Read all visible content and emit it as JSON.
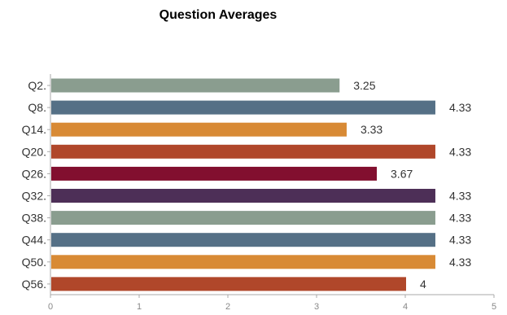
{
  "chart_data": {
    "type": "bar",
    "orientation": "horizontal",
    "title": "Question Averages",
    "xlabel": "",
    "ylabel": "",
    "xlim": [
      0,
      5
    ],
    "ticks": [
      0,
      1,
      2,
      3,
      4,
      5
    ],
    "grid": false,
    "legend": "none",
    "categories": [
      "Q2.",
      "Q8.",
      "Q14.",
      "Q20.",
      "Q26.",
      "Q32.",
      "Q38.",
      "Q44.",
      "Q50.",
      "Q56."
    ],
    "values": [
      3.25,
      4.33,
      3.33,
      4.33,
      3.67,
      4.33,
      4.33,
      4.33,
      4.33,
      4
    ],
    "value_labels": [
      "3.25",
      "4.33",
      "3.33",
      "4.33",
      "3.67",
      "4.33",
      "4.33",
      "4.33",
      "4.33",
      "4"
    ],
    "colors": [
      "#8a9d8f",
      "#557086",
      "#d88a35",
      "#b0472a",
      "#820f2f",
      "#4d2f57",
      "#8a9d8f",
      "#557086",
      "#d88a35",
      "#b0472a"
    ]
  }
}
